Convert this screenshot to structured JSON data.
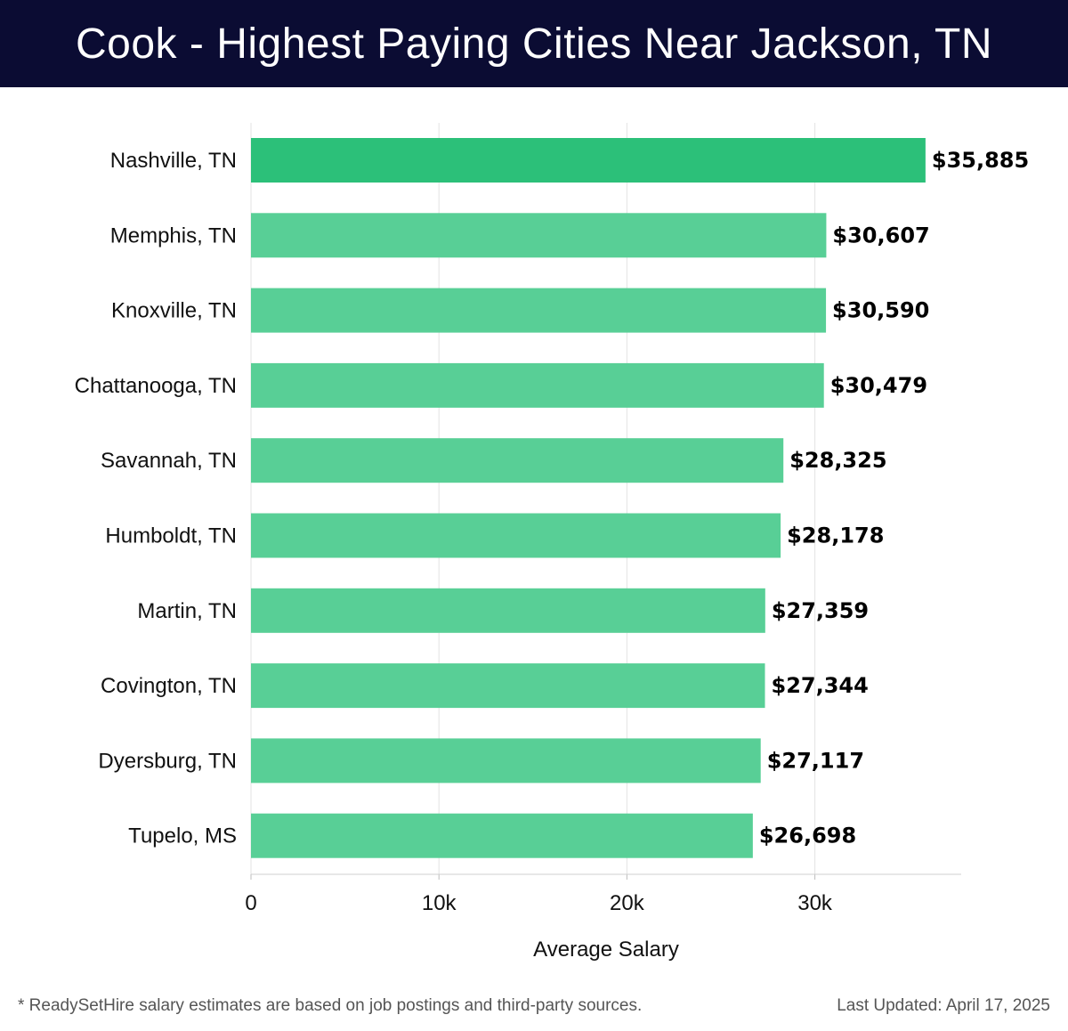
{
  "header": {
    "title": "Cook - Highest Paying Cities Near Jackson, TN"
  },
  "chart_data": {
    "type": "bar",
    "orientation": "horizontal",
    "categories": [
      "Nashville, TN",
      "Memphis, TN",
      "Knoxville, TN",
      "Chattanooga, TN",
      "Savannah, TN",
      "Humboldt, TN",
      "Martin, TN",
      "Covington, TN",
      "Dyersburg, TN",
      "Tupelo, MS"
    ],
    "values": [
      35885,
      30607,
      30590,
      30479,
      28325,
      28178,
      27359,
      27344,
      27117,
      26698
    ],
    "value_labels": [
      "$35,885",
      "$30,607",
      "$30,590",
      "$30,479",
      "$28,325",
      "$28,178",
      "$27,359",
      "$27,344",
      "$27,117",
      "$26,698"
    ],
    "xlabel": "Average Salary",
    "xticks": [
      0,
      10000,
      20000,
      30000
    ],
    "xtick_labels": [
      "0",
      "10k",
      "20k",
      "30k"
    ],
    "xlim": [
      0,
      37700
    ],
    "grid": true,
    "colors": {
      "highlight": "#2cc079",
      "bar": "#58cf96"
    }
  },
  "footer": {
    "note": "* ReadySetHire salary estimates are based on job postings and third-party sources.",
    "updated": "Last Updated: April 17, 2025"
  }
}
